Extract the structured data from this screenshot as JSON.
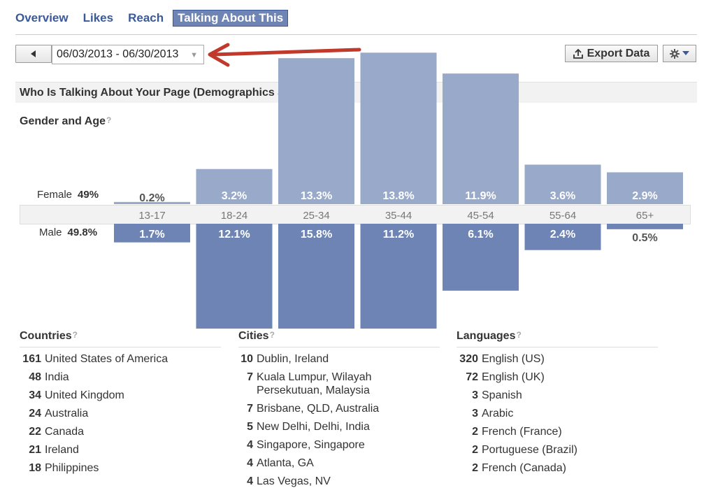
{
  "tabs": [
    {
      "label": "Overview",
      "active": false
    },
    {
      "label": "Likes",
      "active": false
    },
    {
      "label": "Reach",
      "active": false
    },
    {
      "label": "Talking About This",
      "active": true
    }
  ],
  "toolbar": {
    "date_range": "06/03/2013 - 06/30/2013",
    "export_label": "Export Data",
    "icons": [
      "left-arrow-icon",
      "dropdown-caret-icon",
      "export-icon",
      "gear-icon",
      "chevron-down-icon"
    ]
  },
  "section": {
    "title": "Who Is Talking About Your Page (Demographics and Location)"
  },
  "gender_age": {
    "title": "Gender and Age",
    "help": "?",
    "female_label": "Female",
    "female_total": "49%",
    "male_label": "Male",
    "male_total": "49.8%"
  },
  "chart_data": {
    "type": "bar",
    "categories": [
      "13-17",
      "18-24",
      "25-34",
      "35-44",
      "45-54",
      "55-64",
      "65+"
    ],
    "series": [
      {
        "name": "Female",
        "values": [
          0.2,
          3.2,
          13.3,
          13.8,
          11.9,
          3.6,
          2.9
        ],
        "labels": [
          "0.2%",
          "3.2%",
          "13.3%",
          "13.8%",
          "11.9%",
          "3.6%",
          "2.9%"
        ],
        "color": "#98a9ca"
      },
      {
        "name": "Male",
        "values": [
          1.7,
          12.1,
          15.8,
          11.2,
          6.1,
          2.4,
          0.5
        ],
        "labels": [
          "1.7%",
          "12.1%",
          "15.8%",
          "11.2%",
          "6.1%",
          "2.4%",
          "0.5%"
        ],
        "color": "#6d84b4"
      }
    ]
  },
  "countries": {
    "title": "Countries",
    "help": "?",
    "items": [
      {
        "n": "161",
        "t": "United States of America"
      },
      {
        "n": "48",
        "t": "India"
      },
      {
        "n": "34",
        "t": "United Kingdom"
      },
      {
        "n": "24",
        "t": "Australia"
      },
      {
        "n": "22",
        "t": "Canada"
      },
      {
        "n": "21",
        "t": "Ireland"
      },
      {
        "n": "18",
        "t": "Philippines"
      }
    ]
  },
  "cities": {
    "title": "Cities",
    "help": "?",
    "items": [
      {
        "n": "10",
        "t": "Dublin, Ireland"
      },
      {
        "n": "7",
        "t": "Kuala Lumpur, Wilayah Persekutuan, Malaysia"
      },
      {
        "n": "7",
        "t": "Brisbane, QLD, Australia"
      },
      {
        "n": "5",
        "t": "New Delhi, Delhi, India"
      },
      {
        "n": "4",
        "t": "Singapore, Singapore"
      },
      {
        "n": "4",
        "t": "Atlanta, GA"
      },
      {
        "n": "4",
        "t": "Las Vegas, NV"
      }
    ]
  },
  "languages": {
    "title": "Languages",
    "help": "?",
    "items": [
      {
        "n": "320",
        "t": "English (US)"
      },
      {
        "n": "72",
        "t": "English (UK)"
      },
      {
        "n": "3",
        "t": "Spanish"
      },
      {
        "n": "3",
        "t": "Arabic"
      },
      {
        "n": "2",
        "t": "French (France)"
      },
      {
        "n": "2",
        "t": "Portuguese (Brazil)"
      },
      {
        "n": "2",
        "t": "French (Canada)"
      }
    ]
  }
}
